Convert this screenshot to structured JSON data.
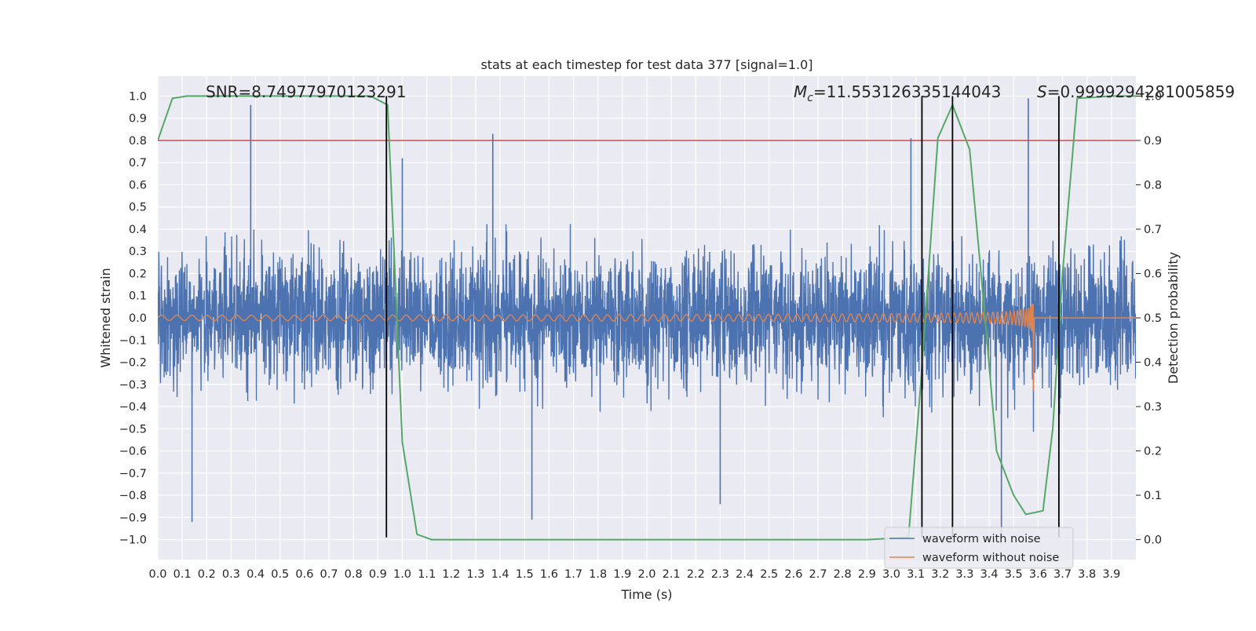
{
  "chart_data": {
    "type": "line",
    "title": "stats at each timestep for test data 377 [signal=1.0]",
    "xlabel": "Time (s)",
    "ylabel_left": "Whitened strain",
    "ylabel_right": "Detection probability",
    "xlim": [
      0.0,
      4.0
    ],
    "ylim_left": [
      -1.09,
      1.09
    ],
    "ylim_right": [
      -0.045,
      1.045
    ],
    "x_ticks": [
      "0.0",
      "0.1",
      "0.2",
      "0.3",
      "0.4",
      "0.5",
      "0.6",
      "0.7",
      "0.8",
      "0.9",
      "1.0",
      "1.1",
      "1.2",
      "1.3",
      "1.4",
      "1.5",
      "1.6",
      "1.7",
      "1.8",
      "1.9",
      "2.0",
      "2.1",
      "2.2",
      "2.3",
      "2.4",
      "2.5",
      "2.6",
      "2.7",
      "2.8",
      "2.9",
      "3.0",
      "3.1",
      "3.2",
      "3.3",
      "3.4",
      "3.5",
      "3.6",
      "3.7",
      "3.8",
      "3.9"
    ],
    "y_ticks_left": [
      "1.0",
      "0.9",
      "0.8",
      "0.7",
      "0.6",
      "0.5",
      "0.4",
      "0.3",
      "0.2",
      "0.1",
      "0.0",
      "−0.1",
      "−0.2",
      "−0.3",
      "−0.4",
      "−0.5",
      "−0.6",
      "−0.7",
      "−0.8",
      "−0.9",
      "−1.0"
    ],
    "y_ticks_right": [
      "0.0",
      "0.1",
      "0.2",
      "0.3",
      "0.4",
      "0.5",
      "0.6",
      "0.7",
      "0.8",
      "0.9",
      "1.0"
    ],
    "grid": true,
    "legend_position": "bottom-right",
    "annotations": {
      "snr": "SNR=8.74977970123291",
      "mc_symbol": "M",
      "mc_subscript": "c",
      "mc_value": "=11.553126335144043",
      "s_symbol": "S",
      "s_value": "=0.9999294281005859"
    },
    "series": [
      {
        "name": "waveform with noise",
        "axis": "left",
        "color": "#4c72b0",
        "kind": "noise",
        "amplitude_typical": 0.33,
        "peak_points": [
          [
            0.38,
            0.96
          ],
          [
            0.14,
            -0.92
          ],
          [
            1.37,
            0.83
          ],
          [
            1.53,
            -0.91
          ],
          [
            2.3,
            -0.84
          ],
          [
            3.45,
            -0.99
          ],
          [
            3.56,
            0.99
          ],
          [
            3.08,
            0.81
          ],
          [
            1.0,
            0.72
          ]
        ]
      },
      {
        "name": "waveform without noise",
        "axis": "left",
        "color": "#dd8452",
        "kind": "chirp",
        "t_merger": 3.58,
        "start_amplitude": 0.012,
        "end_amplitude": 0.28
      },
      {
        "name": "",
        "axis": "right",
        "color": "#55a868",
        "kind": "detection_probability",
        "x": [
          0.0,
          0.06,
          0.12,
          0.2,
          0.3,
          0.5,
          0.7,
          0.87,
          0.94,
          1.0,
          1.06,
          1.12,
          1.3,
          2.0,
          2.5,
          2.9,
          3.07,
          3.12,
          3.19,
          3.25,
          3.32,
          3.38,
          3.43,
          3.5,
          3.55,
          3.62,
          3.66,
          3.7,
          3.76,
          3.9,
          4.0
        ],
        "y": [
          0.9,
          0.995,
          1.0,
          1.0,
          1.0,
          1.0,
          1.0,
          1.0,
          0.98,
          0.22,
          0.012,
          0.0,
          0.0,
          0.0,
          0.0,
          0.0,
          0.005,
          0.35,
          0.905,
          0.98,
          0.88,
          0.52,
          0.2,
          0.1,
          0.057,
          0.065,
          0.25,
          0.6,
          0.995,
          1.0,
          1.0
        ]
      }
    ],
    "threshold_line": {
      "axis": "left",
      "value": 0.8,
      "color": "#c44e52"
    },
    "vertical_lines": [
      0.935,
      3.125,
      3.25,
      3.685
    ],
    "vertical_line_color": "#000000",
    "vertical_line_range_left": [
      -0.99,
      1.0
    ]
  }
}
